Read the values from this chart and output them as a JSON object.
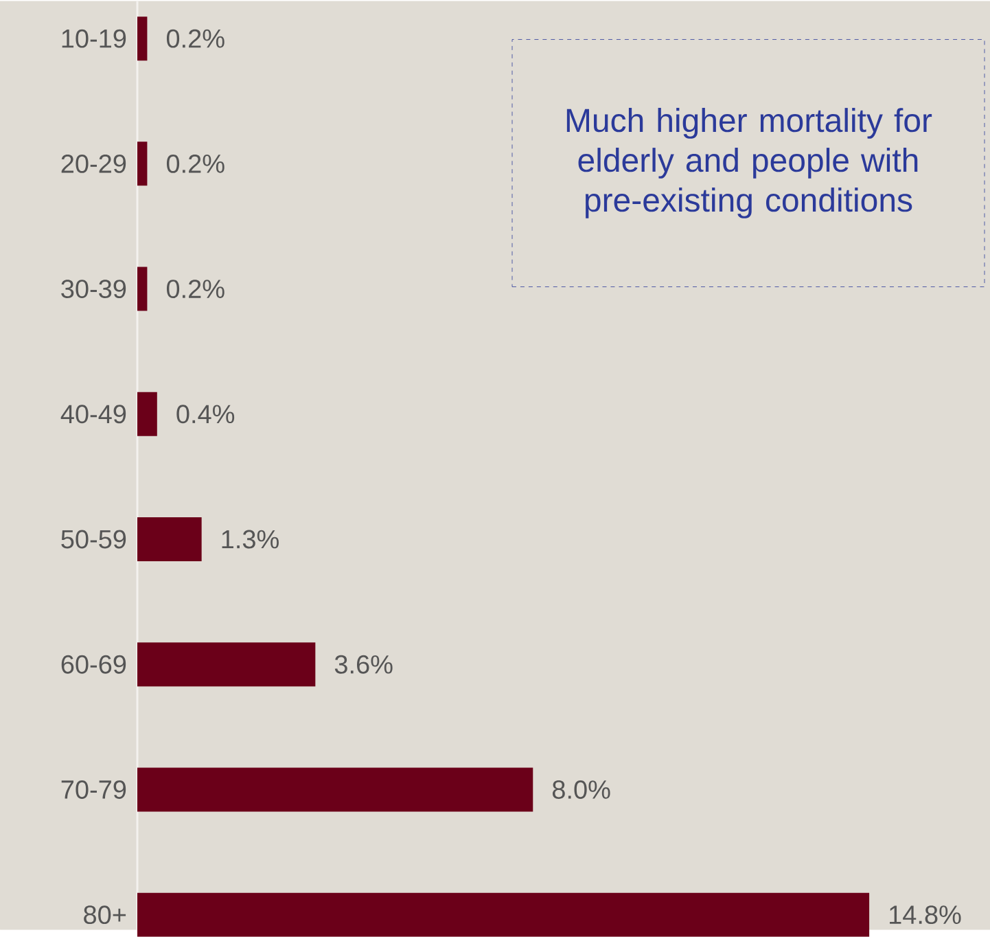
{
  "chart_data": {
    "type": "bar",
    "orientation": "horizontal",
    "categories": [
      "10-19",
      "20-29",
      "30-39",
      "40-49",
      "50-59",
      "60-69",
      "70-79",
      "80+"
    ],
    "values": [
      0.2,
      0.2,
      0.2,
      0.4,
      1.3,
      3.6,
      8.0,
      14.8
    ],
    "value_labels": [
      "0.2%",
      "0.2%",
      "0.2%",
      "0.4%",
      "1.3%",
      "3.6%",
      "8.0%",
      "14.8%"
    ],
    "color": "#6b0019",
    "annotations": [
      "Much higher mortality for elderly and people with pre-existing conditions"
    ]
  }
}
